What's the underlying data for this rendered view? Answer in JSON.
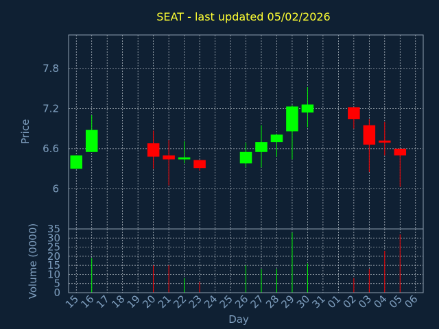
{
  "chart_data": [
    {
      "type": "candlestick",
      "title": "SEAT - last updated 05/02/2026",
      "ylabel": "Price",
      "ylim": [
        5.4,
        8.3
      ],
      "yticks": [
        6,
        6.6,
        7.2,
        7.8
      ],
      "ytick_labels": [
        "6",
        "6.6",
        "7.2",
        "7.8"
      ],
      "grid": true,
      "colors": {
        "up": "#00ff00",
        "down": "#ff0000",
        "background": "#0f2033",
        "title": "#ffff33",
        "axis": "#7f9fbf"
      },
      "categories": [
        "15",
        "16",
        "17",
        "18",
        "19",
        "20",
        "21",
        "22",
        "23",
        "24",
        "25",
        "26",
        "27",
        "28",
        "29",
        "30",
        "31",
        "01",
        "02",
        "03",
        "04",
        "05",
        "06"
      ],
      "candles": [
        {
          "day": "15",
          "open": 6.3,
          "high": 6.5,
          "low": 6.3,
          "close": 6.5
        },
        {
          "day": "16",
          "open": 6.55,
          "high": 7.1,
          "low": 6.55,
          "close": 6.88
        },
        {
          "day": "20",
          "open": 6.68,
          "high": 6.87,
          "low": 6.3,
          "close": 6.48
        },
        {
          "day": "21",
          "open": 6.5,
          "high": 6.73,
          "low": 6.05,
          "close": 6.44
        },
        {
          "day": "22",
          "open": 6.44,
          "high": 6.71,
          "low": 6.38,
          "close": 6.47
        },
        {
          "day": "23",
          "open": 6.43,
          "high": 6.43,
          "low": 6.27,
          "close": 6.31
        },
        {
          "day": "26",
          "open": 6.38,
          "high": 6.69,
          "low": 6.32,
          "close": 6.55
        },
        {
          "day": "27",
          "open": 6.55,
          "high": 6.95,
          "low": 6.32,
          "close": 6.7
        },
        {
          "day": "28",
          "open": 6.7,
          "high": 6.82,
          "low": 6.48,
          "close": 6.81
        },
        {
          "day": "29",
          "open": 6.86,
          "high": 7.25,
          "low": 6.44,
          "close": 7.23
        },
        {
          "day": "30",
          "open": 7.14,
          "high": 7.52,
          "low": 6.92,
          "close": 7.26
        },
        {
          "day": "02",
          "open": 7.22,
          "high": 7.22,
          "low": 6.9,
          "close": 7.04
        },
        {
          "day": "03",
          "open": 6.95,
          "high": 7.04,
          "low": 6.25,
          "close": 6.66
        },
        {
          "day": "04",
          "open": 6.72,
          "high": 7.0,
          "low": 6.5,
          "close": 6.69
        },
        {
          "day": "05",
          "open": 6.6,
          "high": 6.6,
          "low": 6.03,
          "close": 6.5
        }
      ]
    },
    {
      "type": "bar",
      "ylabel": "Volume (0000)",
      "xlabel": "Day",
      "ylim": [
        0,
        35
      ],
      "yticks": [
        0,
        5,
        10,
        15,
        20,
        25,
        30,
        35
      ],
      "ytick_labels": [
        "0",
        "5",
        "10",
        "15",
        "20",
        "25",
        "30",
        "35"
      ],
      "categories": [
        "15",
        "16",
        "17",
        "18",
        "19",
        "20",
        "21",
        "22",
        "23",
        "24",
        "25",
        "26",
        "27",
        "28",
        "29",
        "30",
        "31",
        "01",
        "02",
        "03",
        "04",
        "05",
        "06"
      ],
      "bars": [
        {
          "day": "16",
          "value": 19,
          "direction": "up"
        },
        {
          "day": "20",
          "value": 15,
          "direction": "down"
        },
        {
          "day": "21",
          "value": 15,
          "direction": "down"
        },
        {
          "day": "22",
          "value": 8,
          "direction": "up"
        },
        {
          "day": "23",
          "value": 6,
          "direction": "down"
        },
        {
          "day": "26",
          "value": 15,
          "direction": "up"
        },
        {
          "day": "27",
          "value": 13,
          "direction": "up"
        },
        {
          "day": "28",
          "value": 13,
          "direction": "up"
        },
        {
          "day": "29",
          "value": 33,
          "direction": "up"
        },
        {
          "day": "30",
          "value": 16,
          "direction": "up"
        },
        {
          "day": "02",
          "value": 8,
          "direction": "down"
        },
        {
          "day": "03",
          "value": 13,
          "direction": "down"
        },
        {
          "day": "04",
          "value": 23,
          "direction": "down"
        },
        {
          "day": "05",
          "value": 32,
          "direction": "down"
        }
      ]
    }
  ]
}
